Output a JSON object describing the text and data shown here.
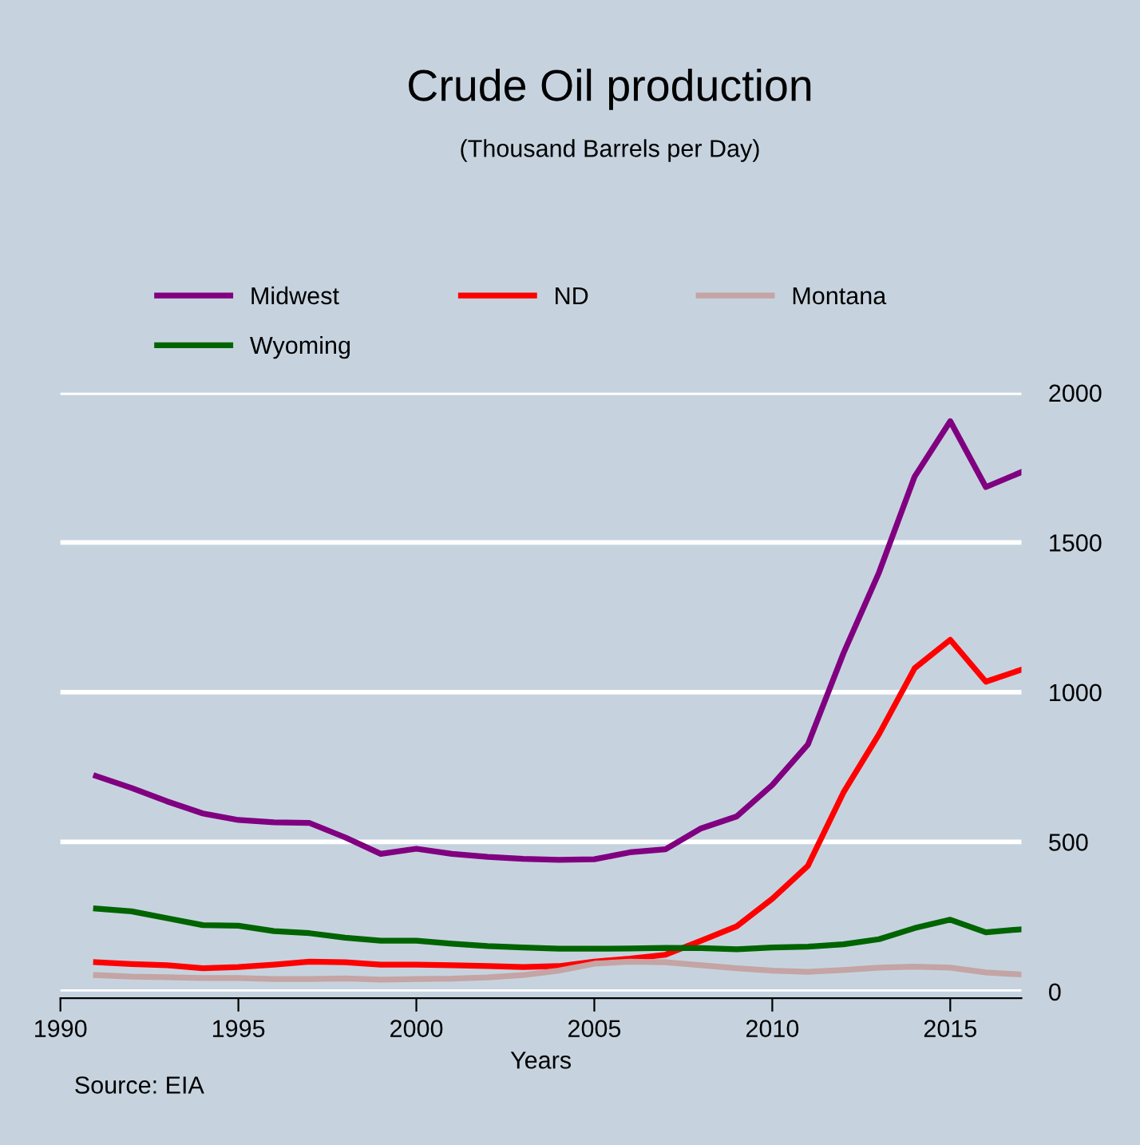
{
  "chart_data": {
    "type": "line",
    "title": "Crude Oil production",
    "subtitle": "(Thousand Barrels per Day)",
    "xlabel": "Years",
    "x": [
      1991,
      1992,
      1993,
      1994,
      1995,
      1996,
      1997,
      1998,
      1999,
      2000,
      2001,
      2002,
      2003,
      2004,
      2005,
      2006,
      2007,
      2008,
      2009,
      2010,
      2011,
      2012,
      2013,
      2014,
      2015,
      2016,
      2017
    ],
    "series": [
      {
        "name": "Midwest",
        "color": "#800080",
        "values": [
          720,
          680,
          635,
          595,
          573,
          565,
          563,
          515,
          460,
          477,
          460,
          450,
          443,
          440,
          442,
          465,
          475,
          545,
          585,
          690,
          825,
          1130,
          1400,
          1720,
          1905,
          1685,
          1735
        ]
      },
      {
        "name": "ND",
        "color": "#ff0000",
        "values": [
          98,
          92,
          88,
          78,
          82,
          90,
          100,
          98,
          90,
          90,
          88,
          85,
          82,
          85,
          100,
          110,
          123,
          170,
          218,
          310,
          420,
          665,
          860,
          1080,
          1175,
          1035,
          1075
        ]
      },
      {
        "name": "Montana",
        "color": "#c4a4a4",
        "values": [
          55,
          50,
          48,
          45,
          45,
          42,
          42,
          44,
          40,
          42,
          43,
          47,
          55,
          70,
          93,
          100,
          98,
          88,
          78,
          70,
          66,
          72,
          80,
          83,
          80,
          64,
          57
        ]
      },
      {
        "name": "Wyoming",
        "color": "#006400",
        "values": [
          277,
          268,
          245,
          222,
          220,
          202,
          195,
          180,
          170,
          170,
          160,
          152,
          147,
          143,
          143,
          144,
          146,
          145,
          141,
          147,
          150,
          158,
          175,
          212,
          240,
          198,
          208
        ]
      }
    ],
    "xlim": [
      1990,
      2017
    ],
    "xticks": [
      1990,
      1995,
      2000,
      2005,
      2010,
      2015
    ],
    "ylim": [
      0,
      2000
    ],
    "yticks": [
      0,
      500,
      1000,
      1500,
      2000
    ],
    "grid": "y",
    "legend": "top",
    "marker": "none",
    "line_style": "solid",
    "annotations": [
      "Source: EIA"
    ]
  }
}
